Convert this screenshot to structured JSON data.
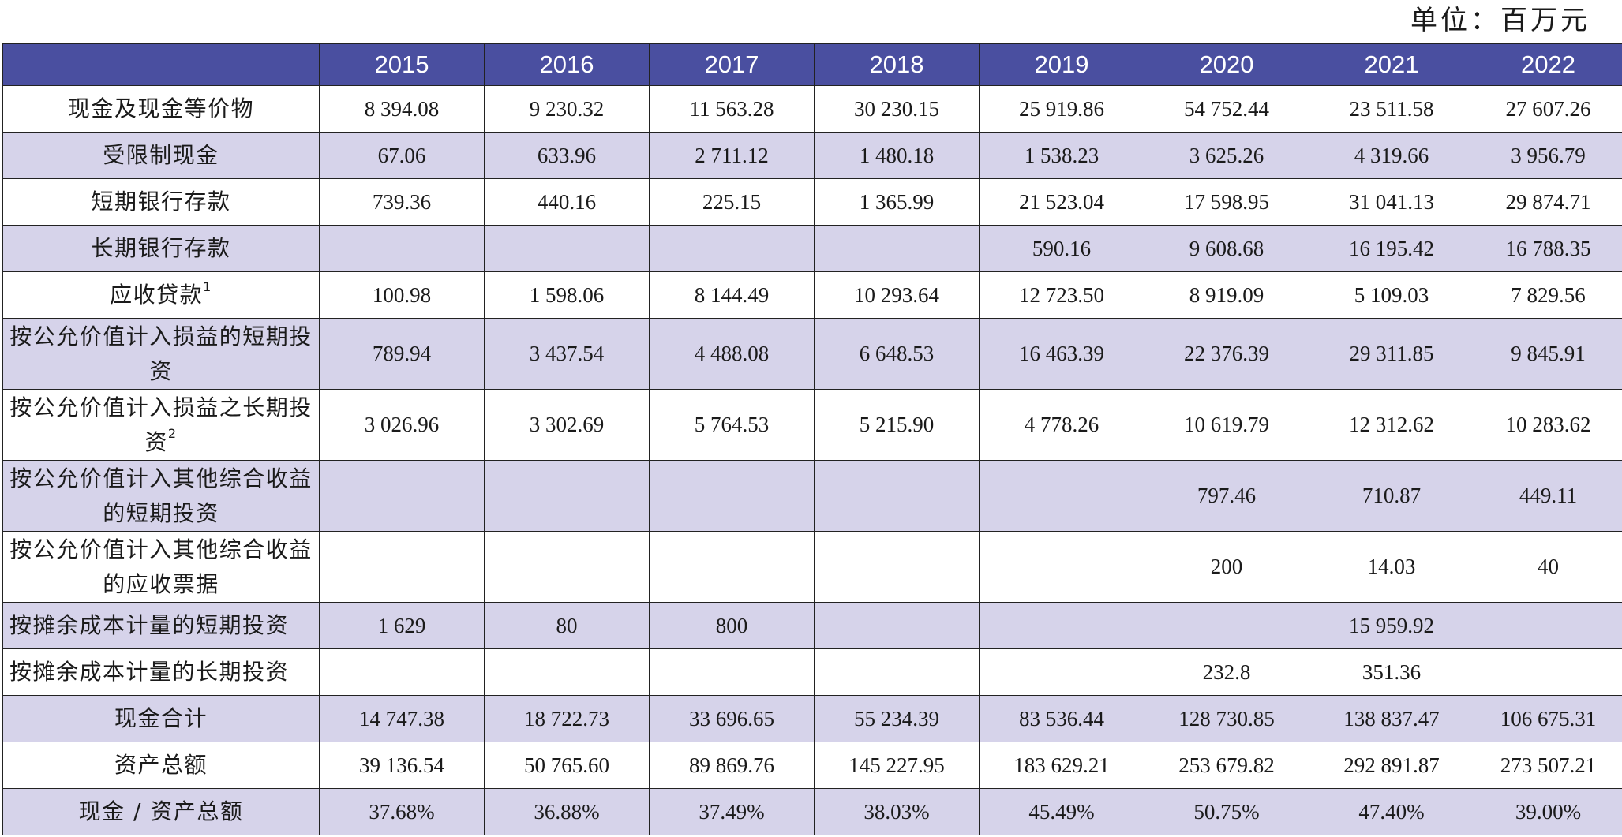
{
  "unit_label": "单位：百万元",
  "header": {
    "corner": "",
    "years": [
      "2015",
      "2016",
      "2017",
      "2018",
      "2019",
      "2020",
      "2021",
      "2022"
    ]
  },
  "rows": [
    {
      "label": "现金及现金等价物",
      "sup": "",
      "values": [
        "8 394.08",
        "9 230.32",
        "11 563.28",
        "30 230.15",
        "25 919.86",
        "54 752.44",
        "23 511.58",
        "27 607.26"
      ]
    },
    {
      "label": "受限制现金",
      "sup": "",
      "values": [
        "67.06",
        "633.96",
        "2 711.12",
        "1 480.18",
        "1 538.23",
        "3 625.26",
        "4 319.66",
        "3 956.79"
      ]
    },
    {
      "label": "短期银行存款",
      "sup": "",
      "values": [
        "739.36",
        "440.16",
        "225.15",
        "1 365.99",
        "21 523.04",
        "17 598.95",
        "31 041.13",
        "29 874.71"
      ]
    },
    {
      "label": "长期银行存款",
      "sup": "",
      "values": [
        "",
        "",
        "",
        "",
        "590.16",
        "9 608.68",
        "16 195.42",
        "16 788.35"
      ]
    },
    {
      "label": "应收贷款",
      "sup": "1",
      "values": [
        "100.98",
        "1 598.06",
        "8 144.49",
        "10 293.64",
        "12 723.50",
        "8 919.09",
        "5 109.03",
        "7 829.56"
      ]
    },
    {
      "label": "按公允价值计入损益的短期投资",
      "sup": "",
      "values": [
        "789.94",
        "3 437.54",
        "4 488.08",
        "6 648.53",
        "16 463.39",
        "22 376.39",
        "29 311.85",
        "9 845.91"
      ]
    },
    {
      "label": "按公允价值计入损益之长期投资",
      "sup": "2",
      "values": [
        "3 026.96",
        "3 302.69",
        "5 764.53",
        "5 215.90",
        "4 778.26",
        "10 619.79",
        "12 312.62",
        "10 283.62"
      ]
    },
    {
      "label": "按公允价值计入其他综合收益的短期投资",
      "sup": "",
      "values": [
        "",
        "",
        "",
        "",
        "",
        "797.46",
        "710.87",
        "449.11"
      ]
    },
    {
      "label": "按公允价值计入其他综合收益的应收票据",
      "sup": "",
      "values": [
        "",
        "",
        "",
        "",
        "",
        "200",
        "14.03",
        "40"
      ]
    },
    {
      "label": "按摊余成本计量的短期投资",
      "sup": "",
      "values": [
        "1 629",
        "80",
        "800",
        "",
        "",
        "",
        "15 959.92",
        ""
      ]
    },
    {
      "label": "按摊余成本计量的长期投资",
      "sup": "",
      "values": [
        "",
        "",
        "",
        "",
        "",
        "232.8",
        "351.36",
        ""
      ]
    },
    {
      "label": "现金合计",
      "sup": "",
      "values": [
        "14 747.38",
        "18 722.73",
        "33 696.65",
        "55 234.39",
        "83 536.44",
        "128 730.85",
        "138 837.47",
        "106 675.31"
      ]
    },
    {
      "label": "资产总额",
      "sup": "",
      "values": [
        "39 136.54",
        "50 765.60",
        "89 869.76",
        "145 227.95",
        "183 629.21",
        "253 679.82",
        "292 891.87",
        "273 507.21"
      ]
    },
    {
      "label": "现金 / 资产总额",
      "sup": "",
      "values": [
        "37.68%",
        "36.88%",
        "37.49%",
        "38.03%",
        "45.49%",
        "50.75%",
        "47.40%",
        "39.00%"
      ]
    }
  ]
}
